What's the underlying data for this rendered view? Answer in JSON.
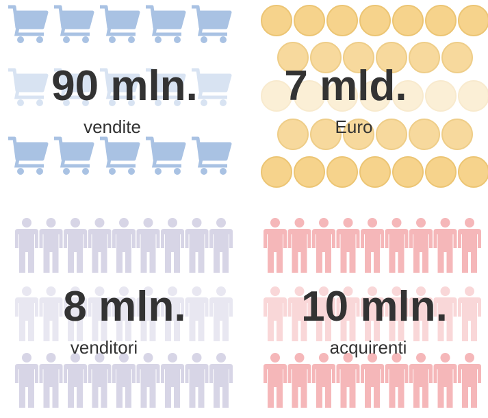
{
  "stats": [
    {
      "value": "90 mln.",
      "label": "vendite"
    },
    {
      "value": "7 mld.",
      "label": "Euro"
    },
    {
      "value": "8 mln.",
      "label": "venditori"
    },
    {
      "value": "10 mln.",
      "label": "acquirenti"
    }
  ]
}
